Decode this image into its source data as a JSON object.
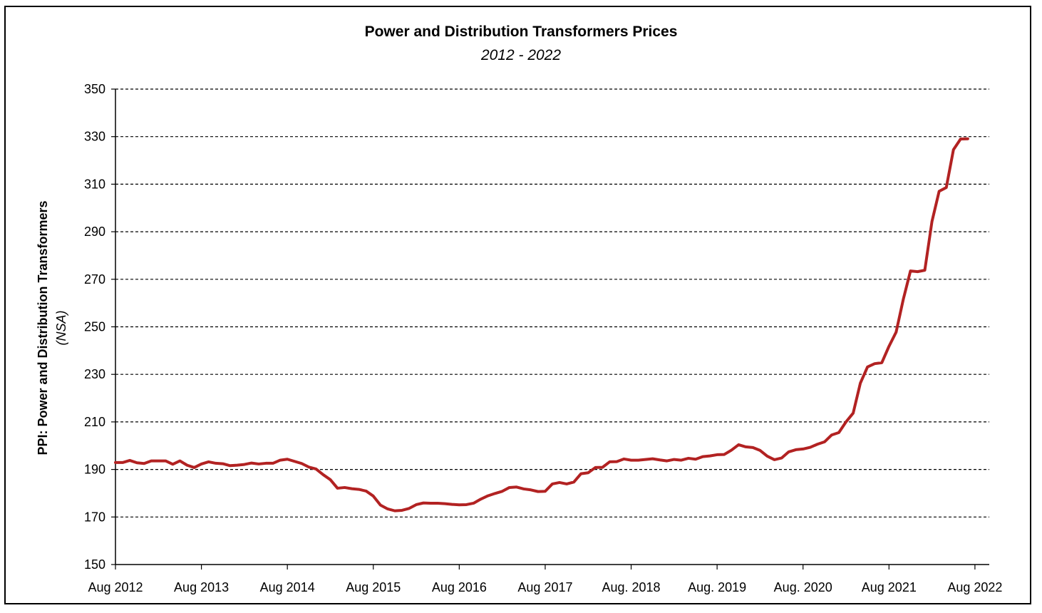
{
  "chart_data": {
    "type": "line",
    "title": "Power and Distribution Transformers Prices",
    "subtitle": "2012 - 2022",
    "ylabel": "PPI: Power and Distribution Transformers",
    "ylabel_sub": "(NSA)",
    "xlabel": "",
    "ylim": [
      150,
      350
    ],
    "yticks": [
      150,
      170,
      190,
      210,
      230,
      250,
      270,
      290,
      310,
      330,
      350
    ],
    "xticks": [
      {
        "m": 0,
        "label": "Aug 2012"
      },
      {
        "m": 12,
        "label": "Aug 2013"
      },
      {
        "m": 24,
        "label": "Aug 2014"
      },
      {
        "m": 36,
        "label": "Aug 2015"
      },
      {
        "m": 48,
        "label": "Aug 2016"
      },
      {
        "m": 60,
        "label": "Aug 2017"
      },
      {
        "m": 72,
        "label": "Aug. 2018"
      },
      {
        "m": 84,
        "label": "Aug. 2019"
      },
      {
        "m": 96,
        "label": "Aug. 2020"
      },
      {
        "m": 108,
        "label": "Aug 2021"
      },
      {
        "m": 120,
        "label": "Aug 2022"
      }
    ],
    "grid": "horizontal dashed",
    "line_color": "#b22222",
    "series": [
      {
        "name": "",
        "values": [
          192.9,
          192.9,
          193.8,
          192.8,
          192.5,
          193.6,
          193.6,
          193.6,
          192.2,
          193.6,
          191.8,
          190.8,
          192.3,
          193.2,
          192.6,
          192.4,
          191.6,
          191.8,
          192.1,
          192.7,
          192.3,
          192.6,
          192.6,
          193.9,
          194.3,
          193.4,
          192.5,
          191.0,
          190.2,
          187.8,
          185.7,
          182.1,
          182.4,
          181.9,
          181.6,
          180.9,
          178.8,
          175.0,
          173.4,
          172.6,
          172.8,
          173.6,
          175.2,
          175.9,
          175.8,
          175.8,
          175.6,
          175.3,
          175.1,
          175.2,
          175.8,
          177.5,
          178.9,
          179.9,
          180.8,
          182.4,
          182.6,
          181.8,
          181.4,
          180.7,
          180.8,
          183.9,
          184.5,
          183.9,
          184.7,
          188.2,
          188.6,
          190.8,
          190.9,
          193.2,
          193.3,
          194.4,
          193.9,
          193.9,
          194.2,
          194.5,
          194.0,
          193.6,
          194.2,
          193.9,
          194.7,
          194.3,
          195.4,
          195.7,
          196.2,
          196.3,
          198.1,
          200.4,
          199.5,
          199.2,
          198.0,
          195.6,
          194.1,
          194.8,
          197.4,
          198.3,
          198.6,
          199.3,
          200.6,
          201.6,
          204.5,
          205.5,
          210.0,
          213.7,
          226.3,
          233.1,
          234.5,
          234.9,
          241.8,
          247.8,
          261.6,
          273.5,
          273.2,
          273.8,
          294.3,
          307.0,
          308.6,
          324.5,
          329.0,
          329.1
        ]
      }
    ]
  }
}
